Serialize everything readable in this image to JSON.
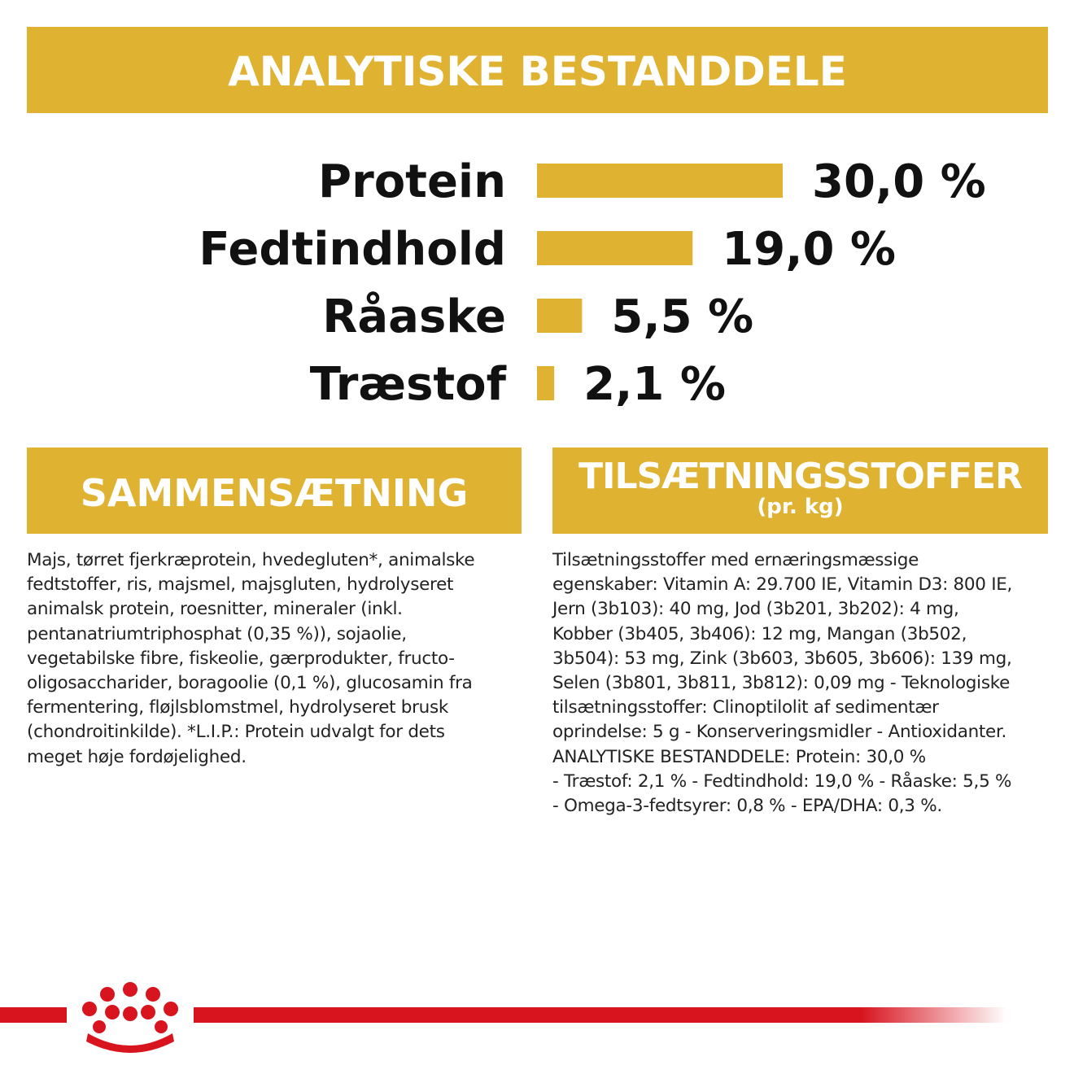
{
  "header": {
    "title": "ANALYTISKE BESTANDDELE"
  },
  "chart_data": {
    "type": "bar",
    "orientation": "horizontal",
    "categories": [
      "Protein",
      "Fedtindhold",
      "Råaske",
      "Træstof"
    ],
    "values": [
      30.0,
      19.0,
      5.5,
      2.1
    ],
    "value_labels": [
      "30,0 %",
      "19,0 %",
      "5,5 %",
      "2,1 %"
    ],
    "bar_color": "#e0b232",
    "title": "",
    "xlabel": "",
    "ylabel": "",
    "xlim": [
      0,
      30
    ]
  },
  "composition": {
    "title": "SAMMENSÆTNING",
    "text": "Majs, tørret fjerkræprotein, hvedegluten*, animalske\nfedtstoffer, ris, majsmel, majsgluten, hydrolyseret\nanimalsk protein, roesnitter, mineraler (inkl.\npentanatriumtriphosphat (0,35 %)), sojaolie,\nvegetabilske fibre, fiskeolie, gærprodukter, fructo-\noligosaccharider, boragoolie (0,1 %), glucosamin fra\nfermentering, fløjlsblomstmel, hydrolyseret brusk\n(chondroitinkilde). *L.I.P.: Protein udvalgt for dets\nmeget høje fordøjelighed."
  },
  "additives": {
    "title": "TILSÆTNINGSSTOFFER",
    "subtitle": "(pr. kg)",
    "text": "Tilsætningsstoffer med ernæringsmæssige\negenskaber: Vitamin A: 29.700 IE, Vitamin D3: 800 IE,\nJern (3b103): 40 mg, Jod (3b201, 3b202): 4 mg,\nKobber (3b405, 3b406): 12 mg, Mangan (3b502,\n3b504): 53 mg, Zink (3b603, 3b605, 3b606): 139 mg,\nSelen (3b801, 3b811, 3b812): 0,09 mg - Teknologiske\ntilsætningsstoffer: Clinoptilolit af sedimentær\noprindelse: 5 g - Konserveringsmidler - Antioxidanter.\nANALYTISKE BESTANDDELE: Protein: 30,0 %\n- Træstof: 2,1 % - Fedtindhold: 19,0 % - Råaske: 5,5 %\n- Omega-3-fedtsyrer: 0,8 % - EPA/DHA: 0,3 %."
  },
  "brand": {
    "logo_icon": "crown-icon",
    "logo_color": "#e1001a"
  }
}
